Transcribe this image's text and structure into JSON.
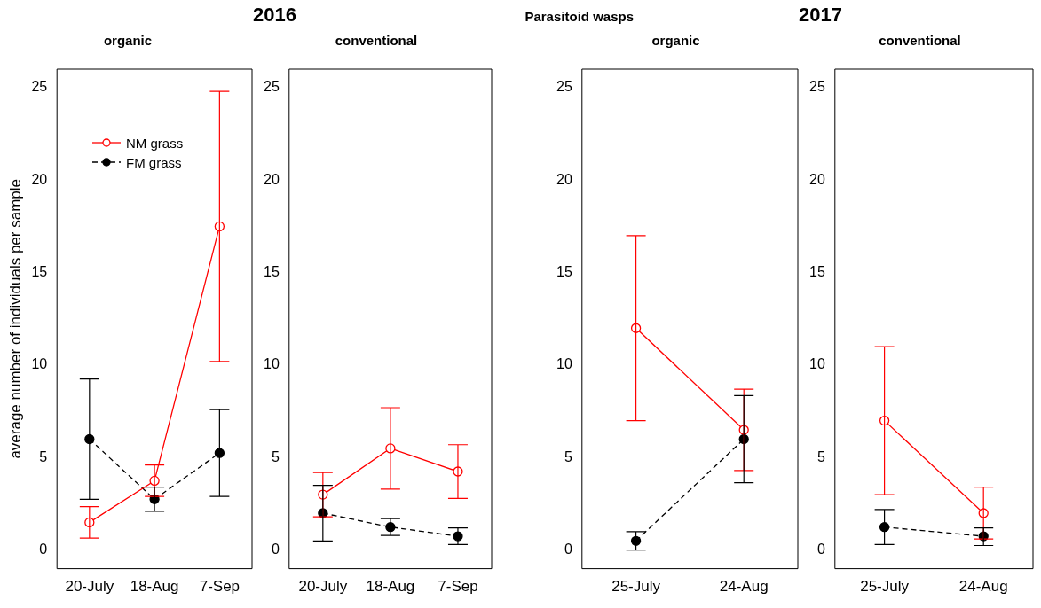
{
  "chart_data": [
    {
      "type": "line",
      "title": "organic",
      "ylabel": "average number of individuals per sample",
      "annotations": [
        "2016"
      ],
      "categories": [
        "20-July",
        "18-Aug",
        "7-Sep"
      ],
      "ylim": [
        -1,
        26
      ],
      "yticks": [
        0,
        5,
        10,
        15,
        20,
        25
      ],
      "legend": "top left",
      "marker": "circle",
      "grid": false,
      "series": [
        {
          "name": "NM grass",
          "color": "#ff0000",
          "values": [
            1.5,
            3.75,
            17.5
          ],
          "errors": [
            [
              0.65,
              2.35
            ],
            [
              2.9,
              4.6
            ],
            [
              10.2,
              24.8
            ]
          ],
          "line_style": "solid"
        },
        {
          "name": "FM grass",
          "color": "#000000",
          "values": [
            6,
            2.75,
            5.25
          ],
          "errors": [
            [
              2.75,
              9.25
            ],
            [
              2.1,
              3.4
            ],
            [
              2.9,
              7.6
            ]
          ],
          "line_style": "dashed"
        }
      ]
    },
    {
      "type": "line",
      "title": "conventional",
      "annotations": [
        "Parasitoid wasps"
      ],
      "categories": [
        "20-July",
        "18-Aug",
        "7-Sep"
      ],
      "ylim": [
        -1,
        26
      ],
      "yticks": [
        0,
        5,
        10,
        15,
        20,
        25
      ],
      "marker": "circle",
      "grid": false,
      "series": [
        {
          "color": "#ff0000",
          "values": [
            3,
            5.5,
            4.25
          ],
          "errors": [
            [
              1.8,
              4.2
            ],
            [
              3.3,
              7.7
            ],
            [
              2.8,
              5.7
            ]
          ],
          "line_style": "solid"
        },
        {
          "color": "#000000",
          "values": [
            2,
            1.25,
            0.75
          ],
          "errors": [
            [
              0.5,
              3.5
            ],
            [
              0.8,
              1.7
            ],
            [
              0.3,
              1.2
            ]
          ],
          "line_style": "dashed"
        }
      ]
    },
    {
      "type": "line",
      "title": "organic",
      "annotations": [
        "2017"
      ],
      "categories": [
        "25-July",
        "24-Aug"
      ],
      "ylim": [
        -1,
        26
      ],
      "yticks": [
        0,
        5,
        10,
        15,
        20,
        25
      ],
      "marker": "circle",
      "grid": false,
      "series": [
        {
          "color": "#ff0000",
          "values": [
            12,
            6.5
          ],
          "errors": [
            [
              7,
              17
            ],
            [
              4.3,
              8.7
            ]
          ],
          "line_style": "solid"
        },
        {
          "color": "#000000",
          "values": [
            0.5,
            6
          ],
          "errors": [
            [
              0,
              1
            ],
            [
              3.65,
              8.35
            ]
          ],
          "line_style": "dashed"
        }
      ]
    },
    {
      "type": "line",
      "title": "conventional",
      "categories": [
        "25-July",
        "24-Aug"
      ],
      "ylim": [
        -1,
        26
      ],
      "yticks": [
        0,
        5,
        10,
        15,
        20,
        25
      ],
      "marker": "circle",
      "grid": false,
      "series": [
        {
          "color": "#ff0000",
          "values": [
            7,
            2
          ],
          "errors": [
            [
              3,
              11
            ],
            [
              0.6,
              3.4
            ]
          ],
          "line_style": "solid"
        },
        {
          "color": "#000000",
          "values": [
            1.25,
            0.75
          ],
          "errors": [
            [
              0.3,
              2.2
            ],
            [
              0.25,
              1.2
            ]
          ],
          "line_style": "dashed"
        }
      ]
    }
  ]
}
